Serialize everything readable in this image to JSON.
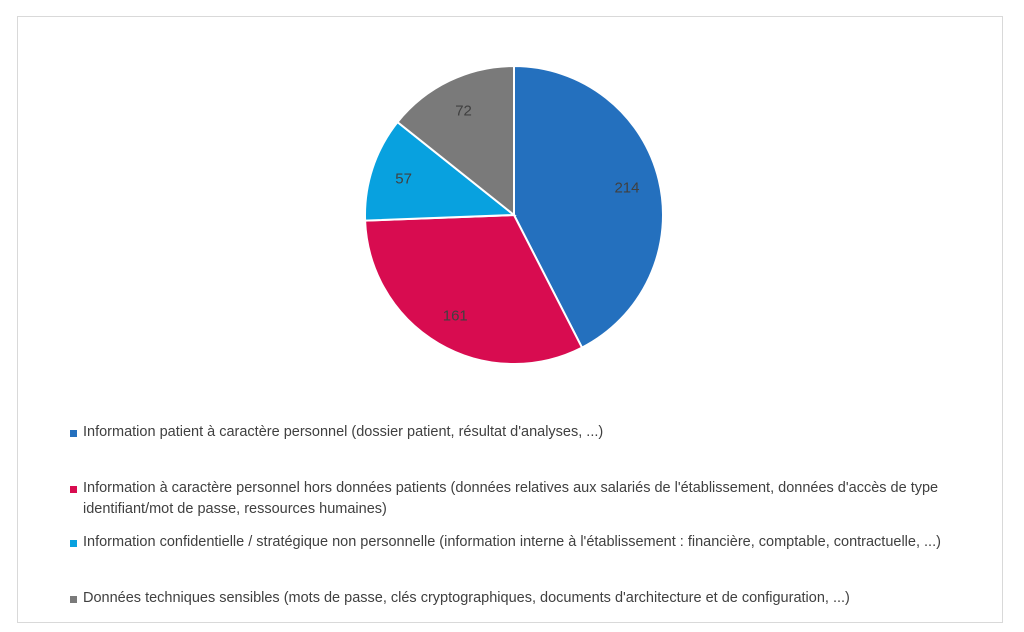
{
  "chart_data": {
    "type": "pie",
    "start_angle_deg": 0,
    "direction": "clockwise",
    "slices": [
      {
        "label": "Information patient à caractère personnel (dossier patient, résultat d'analyses, ...)",
        "value": 214,
        "color": "#2470BE"
      },
      {
        "label": "Information à caractère personnel hors données patients (données relatives aux salariés de l'établissement, données d'accès de type identifiant/mot de passe, ressources humaines)",
        "value": 161,
        "color": "#D80C50"
      },
      {
        "label": "Information confidentielle / stratégique non personnelle (information interne à l'établissement : financière, comptable, contractuelle, ...)",
        "value": 57,
        "color": "#08A1DF"
      },
      {
        "label": "Données techniques sensibles (mots de passe, clés cryptographiques, documents d'architecture et de configuration, ...)",
        "value": 72,
        "color": "#7A7A7A"
      }
    ],
    "legend_position": "bottom",
    "data_labels": [
      "214",
      "161",
      "57",
      "72"
    ]
  }
}
